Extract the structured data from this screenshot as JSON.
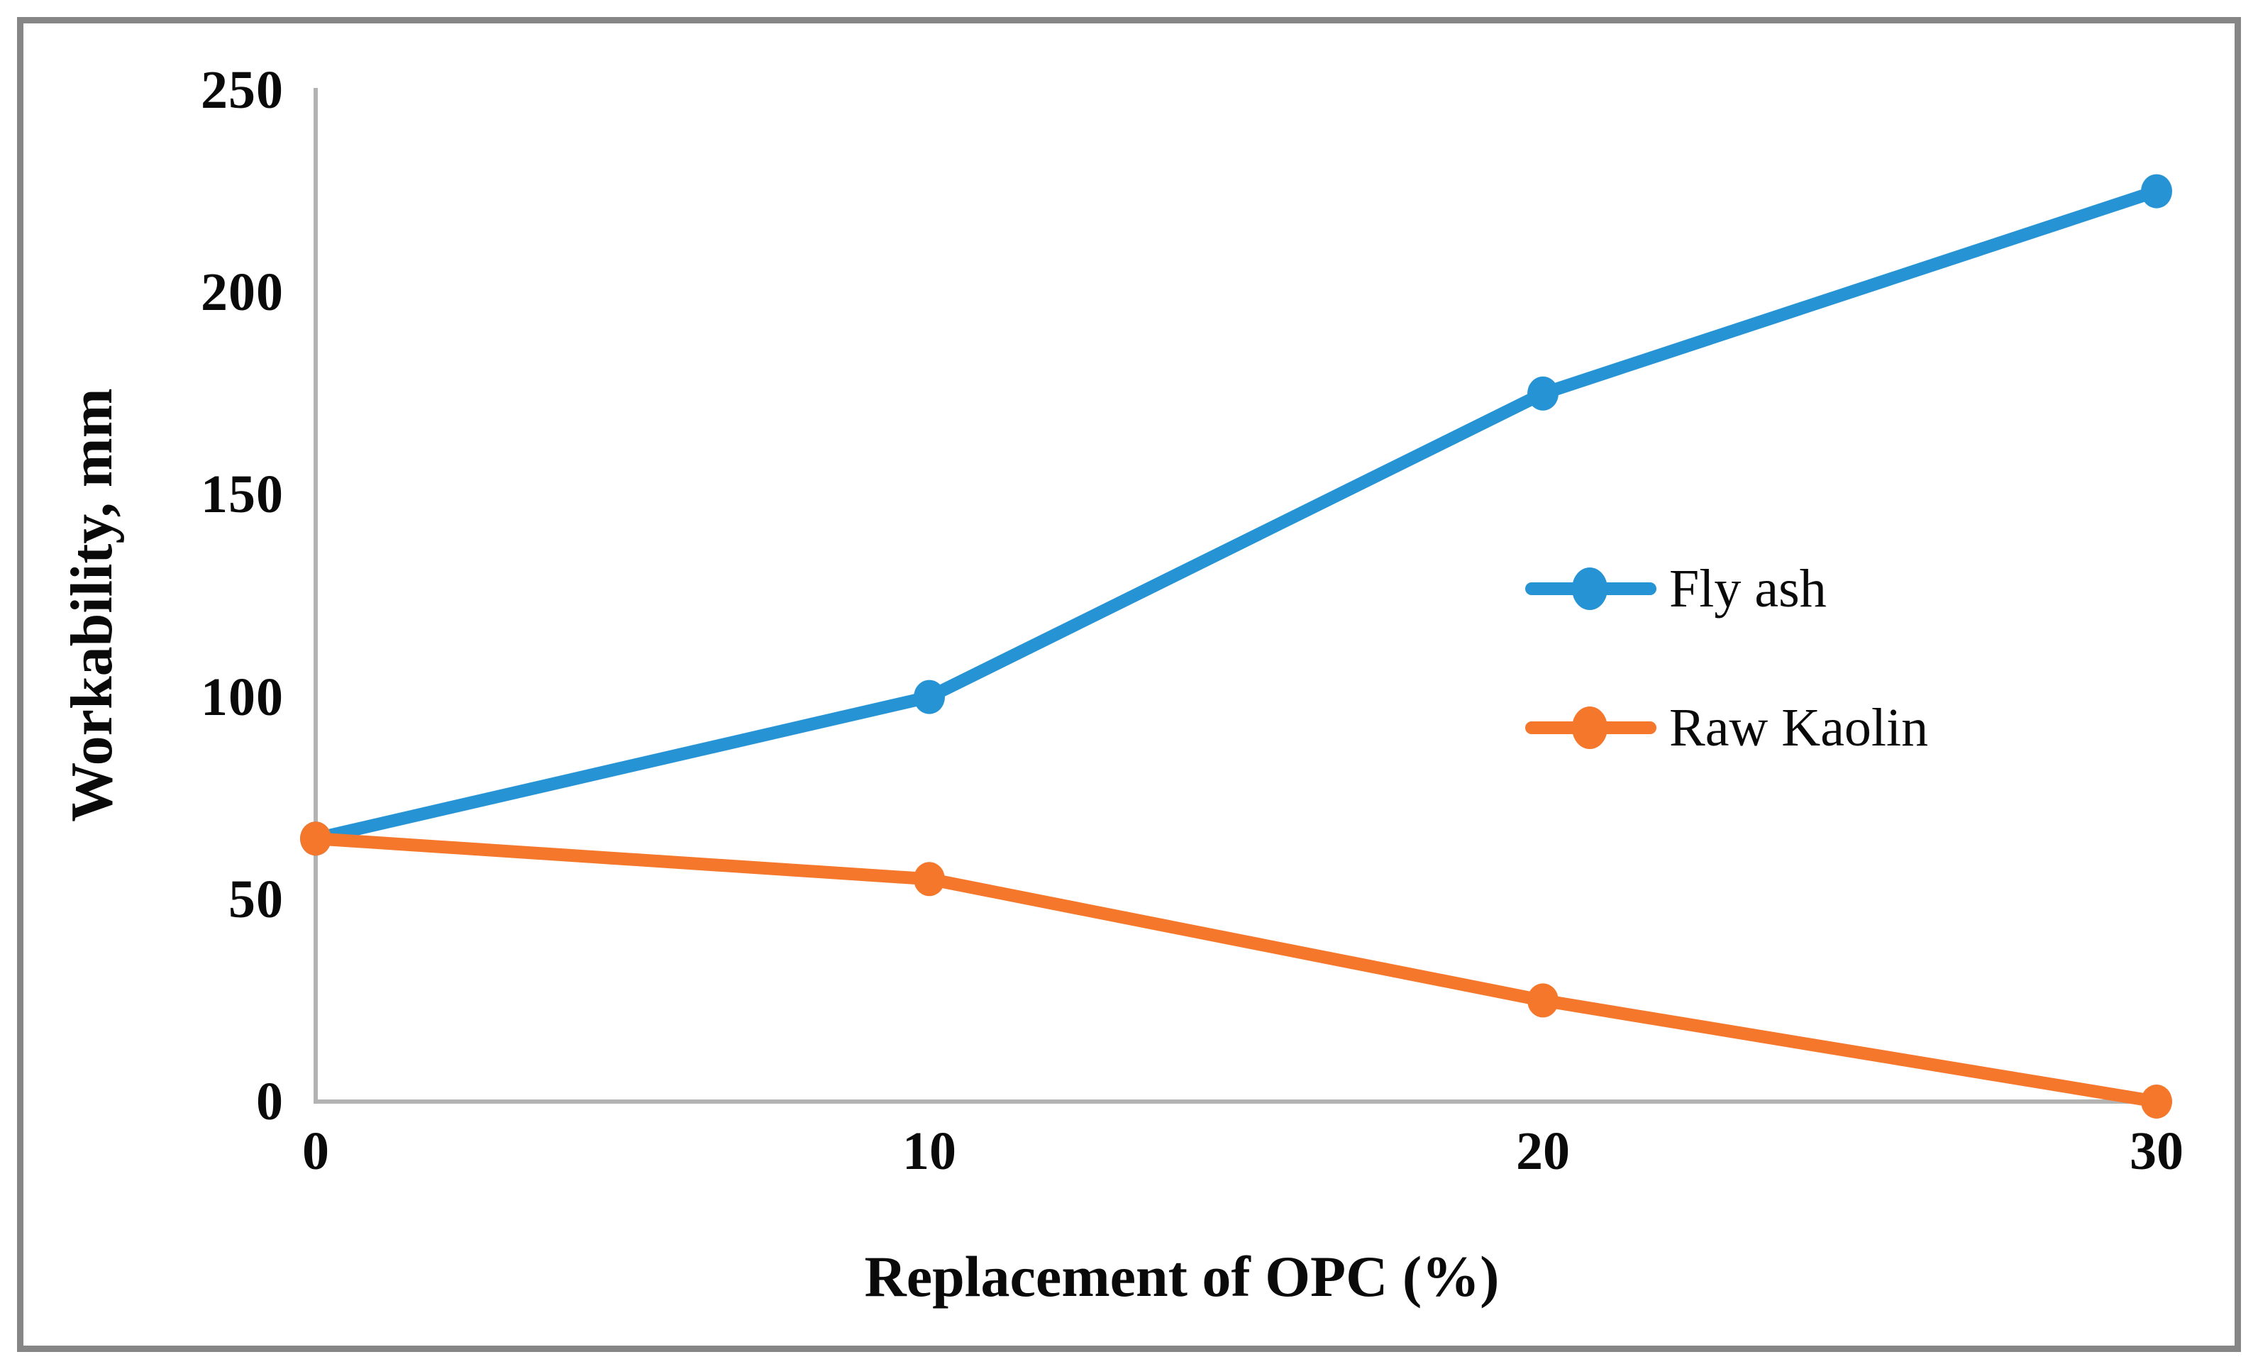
{
  "chart_data": {
    "type": "line",
    "title": "",
    "x": [
      0,
      10,
      20,
      30
    ],
    "x_tick_labels": [
      "0",
      "10",
      "20",
      "30"
    ],
    "y_tick_labels": [
      "0",
      "50",
      "100",
      "150",
      "200",
      "250"
    ],
    "xlabel": "Replacement of OPC (%)",
    "ylabel": "Workability, mm",
    "xlim": [
      0,
      30
    ],
    "ylim": [
      0,
      250
    ],
    "grid": false,
    "legend_position": "center-right-inside",
    "marker": "circle",
    "series": [
      {
        "name": "Fly ash",
        "color": "#2694D4",
        "values": [
          65,
          100,
          175,
          225
        ]
      },
      {
        "name": "Raw Kaolin",
        "color": "#F5772B",
        "values": [
          65,
          55,
          25,
          0
        ]
      }
    ]
  },
  "styling": {
    "frame_border_color": "#868686",
    "axis_line_color": "#B3B3B3",
    "text_color": "#0A0A0A"
  }
}
